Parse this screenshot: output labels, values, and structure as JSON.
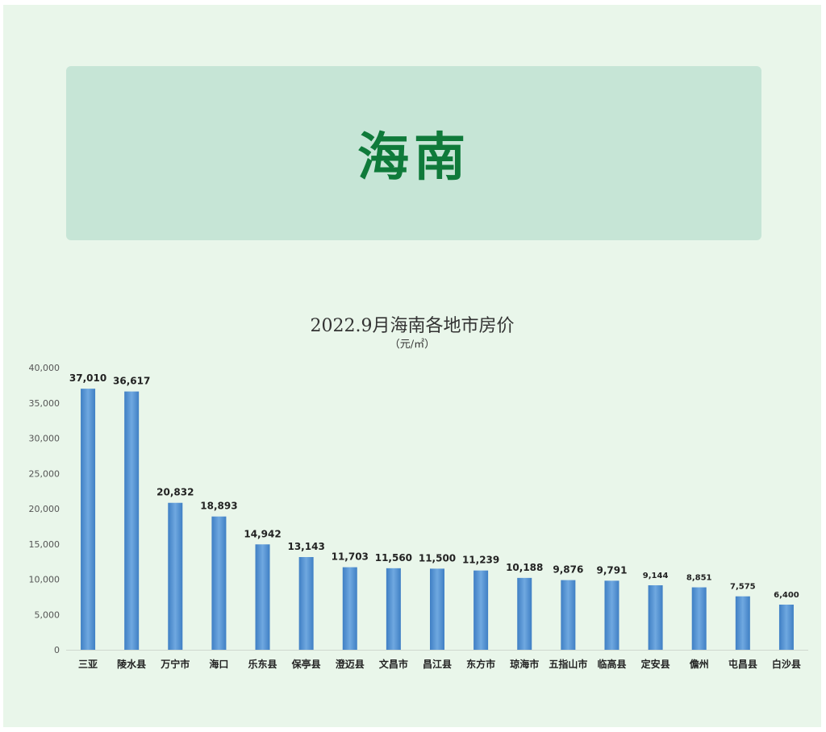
{
  "banner": {
    "title": "海南"
  },
  "chart_data": {
    "type": "bar",
    "title": "2022.9月海南各地市房价",
    "subtitle": "（元/㎡）",
    "xlabel": "",
    "ylabel": "",
    "ylim": [
      0,
      40000
    ],
    "yticks": [
      "0",
      "5,000",
      "10,000",
      "15,000",
      "20,000",
      "25,000",
      "30,000",
      "35,000",
      "40,000"
    ],
    "grid": false,
    "legend": "none",
    "bar_color": "#5b9bd5",
    "categories": [
      "三亚",
      "陵水县",
      "万宁市",
      "海口",
      "乐东县",
      "保亭县",
      "澄迈县",
      "文昌市",
      "昌江县",
      "东方市",
      "琼海市",
      "五指山市",
      "临高县",
      "定安县",
      "儋州",
      "屯昌县",
      "白沙县"
    ],
    "values": [
      37010,
      36617,
      20832,
      18893,
      14942,
      13143,
      11703,
      11560,
      11500,
      11239,
      10188,
      9876,
      9791,
      9144,
      8851,
      7575,
      6400
    ],
    "value_labels": [
      "37,010",
      "36,617",
      "20,832",
      "18,893",
      "14,942",
      "13,143",
      "11,703",
      "11,560",
      "11,500",
      "11,239",
      "10,188",
      "9,876",
      "9,791",
      "9,144",
      "8,851",
      "7,575",
      "6,400"
    ]
  }
}
